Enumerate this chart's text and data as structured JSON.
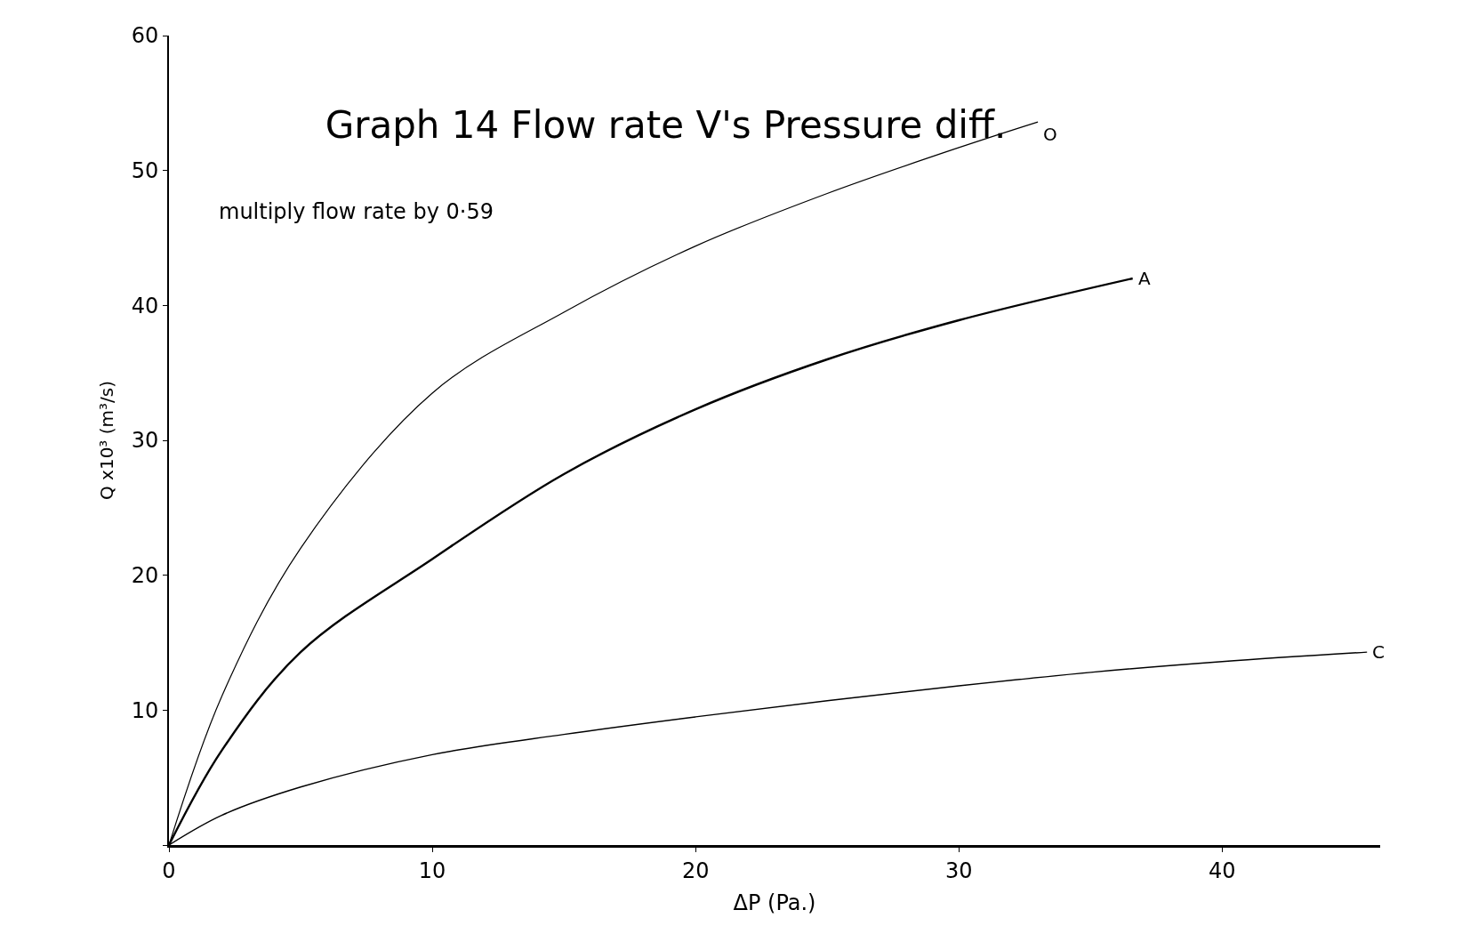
{
  "chart_data": {
    "type": "line",
    "title": "Graph 14 Flow rate V's Pressure diff.",
    "xlabel": "ΔP (Pa.)",
    "ylabel": "Q x10³ (m³/s)",
    "annotations": [
      "multiply flow rate by 0·59"
    ],
    "series": [
      {
        "name": "O",
        "color": "#000000",
        "x": [
          0,
          2,
          5,
          10,
          15,
          20,
          25,
          30,
          33
        ],
        "values": [
          0,
          11,
          22,
          33.5,
          39.5,
          44.4,
          48.3,
          51.7,
          53.6
        ]
      },
      {
        "name": "A",
        "color": "#000000",
        "x": [
          0,
          2,
          5,
          10,
          15,
          20,
          25,
          30,
          36.6
        ],
        "values": [
          0,
          7,
          14.3,
          21.2,
          27.5,
          32.3,
          36,
          38.9,
          42
        ]
      },
      {
        "name": "C",
        "color": "#000000",
        "x": [
          0,
          2,
          5,
          10,
          15,
          20,
          25,
          30,
          35,
          40,
          45.5
        ],
        "values": [
          0,
          2.2,
          4.3,
          6.7,
          8.2,
          9.5,
          10.7,
          11.8,
          12.8,
          13.6,
          14.3
        ]
      }
    ],
    "xlim": [
      0,
      46
    ],
    "ylim": [
      0,
      60
    ],
    "xticks": [
      0,
      10,
      20,
      30,
      40
    ],
    "yticks": [
      {
        "value": 0,
        "label": null
      },
      10,
      20,
      30,
      40,
      50,
      60
    ],
    "grid": false,
    "legend": false,
    "marker": "none",
    "line_style": "solid"
  }
}
